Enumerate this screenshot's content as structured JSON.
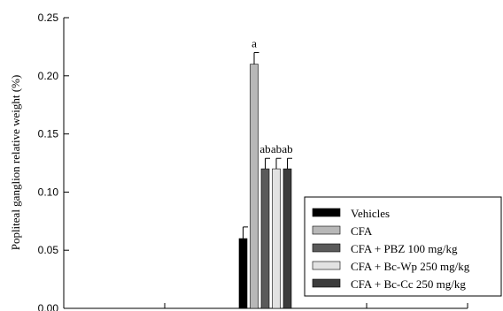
{
  "chart_data": {
    "type": "bar",
    "title": "",
    "xlabel": "",
    "ylabel": "Popliteal ganglion relative weight (%)",
    "ylim": [
      0,
      0.25
    ],
    "yticks": [
      "0.00",
      "0.05",
      "0.10",
      "0.15",
      "0.20",
      "0.25"
    ],
    "grid": false,
    "legend_position": "bottom-right",
    "series": [
      {
        "name": "Vehicles",
        "color": "#000000",
        "value": 0.06,
        "error": 0.01,
        "label": ""
      },
      {
        "name": "CFA",
        "color": "#b8b8b8",
        "value": 0.21,
        "error": 0.01,
        "label": "a"
      },
      {
        "name": "CFA + PBZ 100 mg/kg",
        "color": "#5a5a5a",
        "value": 0.12,
        "error": 0.009,
        "label": "ab"
      },
      {
        "name": "CFA + Bc-Wp 250 mg/kg",
        "color": "#e2e2e2",
        "value": 0.12,
        "error": 0.009,
        "label": "ab"
      },
      {
        "name": "CFA + Bc-Cc 250 mg/kg",
        "color": "#3c3c3c",
        "value": 0.12,
        "error": 0.009,
        "label": "ab"
      }
    ]
  }
}
